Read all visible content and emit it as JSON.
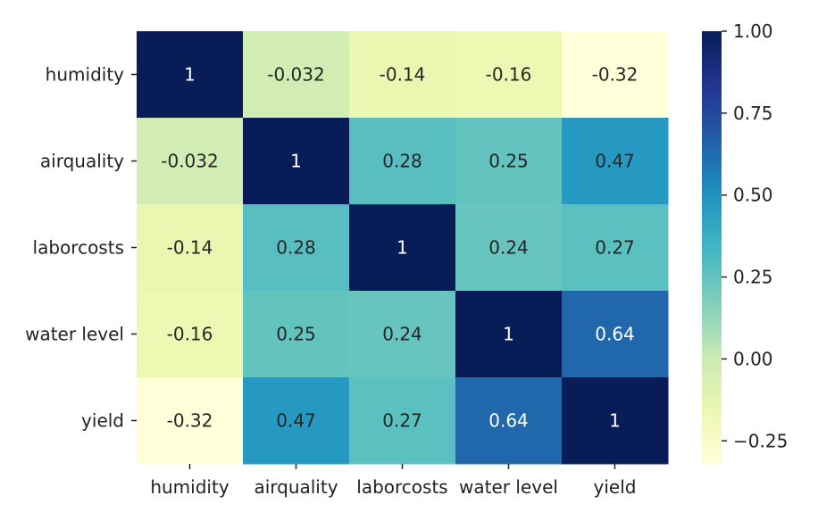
{
  "chart_data": {
    "type": "heatmap",
    "rows": [
      "humidity",
      "airquality",
      "laborcosts",
      "water level",
      "yield"
    ],
    "columns": [
      "humidity",
      "airquality",
      "laborcosts",
      "water level",
      "yield"
    ],
    "values": [
      [
        1,
        -0.032,
        -0.14,
        -0.16,
        -0.32
      ],
      [
        -0.032,
        1,
        0.28,
        0.25,
        0.47
      ],
      [
        -0.14,
        0.28,
        1,
        0.24,
        0.27
      ],
      [
        -0.16,
        0.25,
        0.24,
        1,
        0.64
      ],
      [
        -0.32,
        0.47,
        0.27,
        0.64,
        1
      ]
    ],
    "annotations": [
      [
        "1",
        "-0.032",
        "-0.14",
        "-0.16",
        "-0.32"
      ],
      [
        "-0.032",
        "1",
        "0.28",
        "0.25",
        "0.47"
      ],
      [
        "-0.14",
        "0.28",
        "1",
        "0.24",
        "0.27"
      ],
      [
        "-0.16",
        "0.25",
        "0.24",
        "1",
        "0.64"
      ],
      [
        "-0.32",
        "0.47",
        "0.27",
        "0.64",
        "1"
      ]
    ],
    "colormap": "YlGnBu",
    "vmin": -0.32,
    "vmax": 1,
    "colorbar": {
      "ticks": [
        1.0,
        0.75,
        0.5,
        0.25,
        0.0,
        -0.25
      ],
      "tick_labels": [
        "1.00",
        "0.75",
        "0.50",
        "0.25",
        "0.00",
        "−0.25"
      ]
    },
    "colors": {
      "text_dark": "#262626",
      "text_light": "#ffffff"
    }
  }
}
